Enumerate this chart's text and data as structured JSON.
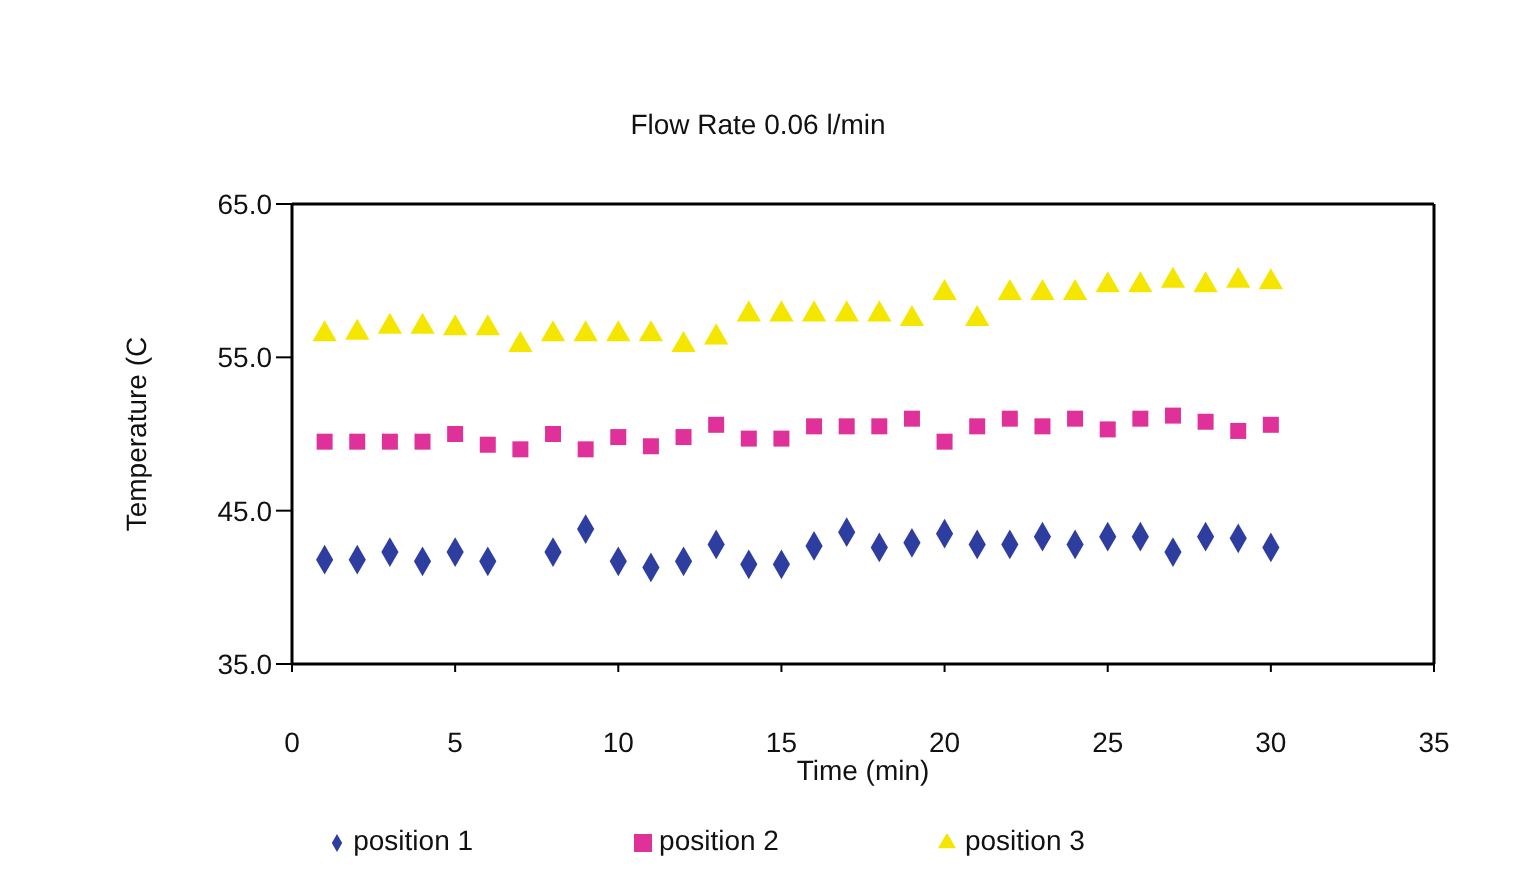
{
  "chart_data": {
    "type": "scatter",
    "title": "Flow Rate 0.06 l/min",
    "xlabel": "Time (min)",
    "ylabel": "Temperature (C",
    "x": [
      1,
      2,
      3,
      4,
      5,
      6,
      7,
      8,
      9,
      10,
      11,
      12,
      13,
      14,
      15,
      16,
      17,
      18,
      19,
      20,
      21,
      22,
      23,
      24,
      25,
      26,
      27,
      28,
      29,
      30
    ],
    "series": [
      {
        "name": "position 1",
        "color": "#2e3ea0",
        "marker": "diamond",
        "values": [
          41.8,
          41.8,
          42.3,
          41.7,
          42.3,
          41.7,
          null,
          42.3,
          43.8,
          41.7,
          41.3,
          41.7,
          42.8,
          41.5,
          41.5,
          42.7,
          43.6,
          42.6,
          42.9,
          43.5,
          42.8,
          42.8,
          43.3,
          42.8,
          43.3,
          43.3,
          42.3,
          43.3,
          43.2,
          42.6
        ]
      },
      {
        "name": "position 2",
        "color": "#e0309a",
        "marker": "square",
        "values": [
          49.5,
          49.5,
          49.5,
          49.5,
          50,
          49.3,
          49,
          50,
          49,
          49.8,
          49.2,
          49.8,
          50.6,
          49.7,
          49.7,
          50.5,
          50.5,
          50.5,
          51,
          49.5,
          50.5,
          51,
          50.5,
          51,
          50.3,
          51,
          51.2,
          50.8,
          50.2,
          50.6
        ]
      },
      {
        "name": "position 3",
        "color": "#f5e600",
        "marker": "triangle",
        "values": [
          56.5,
          56.6,
          57,
          57,
          56.9,
          56.9,
          55.8,
          56.5,
          56.5,
          56.5,
          56.5,
          55.8,
          56.3,
          57.8,
          57.8,
          57.8,
          57.8,
          57.8,
          57.5,
          59.2,
          57.5,
          59.2,
          59.2,
          59.2,
          59.7,
          59.7,
          60,
          59.7,
          60,
          59.9
        ]
      }
    ],
    "xlim": [
      0,
      35
    ],
    "xticks": [
      0,
      5,
      10,
      15,
      20,
      25,
      30,
      35
    ],
    "ylim": [
      35,
      65
    ],
    "yticks": [
      {
        "value": 35,
        "label": "35.0"
      },
      {
        "value": 45,
        "label": "45.0"
      },
      {
        "value": 55,
        "label": "55.0"
      },
      {
        "value": 65,
        "label": "65.0"
      }
    ],
    "grid": false,
    "legend": "bottom"
  }
}
